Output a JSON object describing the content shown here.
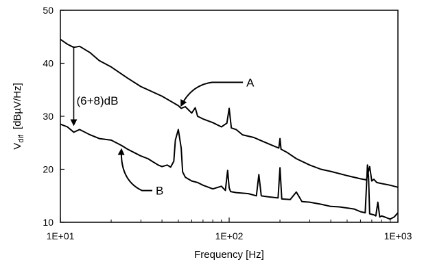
{
  "chart_data": {
    "type": "line",
    "x_scale": "log",
    "xlim": [
      10,
      1000
    ],
    "ylim": [
      10,
      50
    ],
    "grid": false,
    "legend": "none",
    "xlabel": "Frequency [Hz]",
    "ylabel_main": "V",
    "ylabel_sub": "dif",
    "ylabel_units": "[dBµV/Hz]",
    "x_ticks": [
      10,
      100,
      1000
    ],
    "x_tick_labels": [
      "1E+01",
      "1E+02",
      "1E+03"
    ],
    "y_ticks": [
      10,
      20,
      30,
      40,
      50
    ],
    "y_tick_labels": [
      "10",
      "20",
      "30",
      "40",
      "50"
    ],
    "series": [
      {
        "key": "A",
        "x": [
          10,
          11,
          12,
          13,
          15,
          17,
          20,
          25,
          30,
          40,
          50,
          52,
          55,
          60,
          63,
          65,
          70,
          80,
          90,
          97,
          100,
          103,
          110,
          120,
          140,
          160,
          180,
          197,
          200,
          203,
          220,
          250,
          300,
          350,
          400,
          500,
          600,
          650,
          680,
          700,
          720,
          750,
          800,
          900,
          1000
        ],
        "y": [
          44.5,
          43.6,
          43.0,
          43.2,
          42.0,
          40.5,
          39.3,
          37.2,
          35.6,
          33.8,
          32.0,
          31.5,
          31.8,
          30.6,
          31.6,
          30.0,
          29.5,
          28.8,
          28.0,
          28.7,
          31.5,
          27.8,
          27.5,
          26.5,
          26.0,
          25.2,
          24.5,
          24.0,
          25.8,
          23.8,
          23.2,
          22.0,
          20.8,
          20.0,
          19.6,
          18.8,
          18.2,
          18.0,
          20.5,
          17.8,
          18.1,
          17.5,
          17.3,
          17.0,
          16.6
        ]
      },
      {
        "key": "B",
        "x": [
          10,
          11,
          12,
          13,
          15,
          17,
          20,
          23,
          25,
          28,
          30,
          33,
          35,
          38,
          40,
          43,
          45,
          47,
          48,
          50,
          52,
          53,
          55,
          60,
          65,
          70,
          80,
          90,
          95,
          98,
          100,
          102,
          110,
          130,
          145,
          150,
          155,
          170,
          195,
          200,
          205,
          230,
          250,
          270,
          300,
          350,
          400,
          450,
          500,
          550,
          600,
          640,
          660,
          670,
          680,
          700,
          720,
          740,
          760,
          780,
          800,
          850,
          900,
          950,
          1000
        ],
        "y": [
          28.5,
          28.0,
          27.0,
          27.5,
          26.5,
          25.8,
          25.5,
          24.5,
          23.8,
          23.0,
          22.5,
          22.0,
          21.5,
          20.8,
          20.5,
          20.8,
          20.4,
          21.5,
          25.5,
          27.5,
          24.0,
          19.5,
          18.5,
          17.8,
          17.5,
          17.0,
          16.3,
          16.8,
          16.0,
          19.8,
          16.5,
          15.8,
          15.6,
          15.4,
          15.0,
          19.0,
          15.0,
          14.8,
          14.6,
          20.3,
          14.4,
          14.3,
          15.7,
          13.9,
          13.8,
          13.4,
          13.0,
          12.9,
          12.7,
          12.5,
          12.0,
          11.8,
          20.8,
          18.5,
          11.6,
          11.5,
          11.4,
          11.2,
          13.8,
          11.0,
          11.2,
          10.9,
          10.6,
          11.0,
          11.8
        ]
      }
    ],
    "annotations": [
      {
        "text": "A",
        "target_series": "A"
      },
      {
        "text": "B",
        "target_series": "B"
      },
      {
        "text": "(6+8)dB"
      }
    ]
  }
}
